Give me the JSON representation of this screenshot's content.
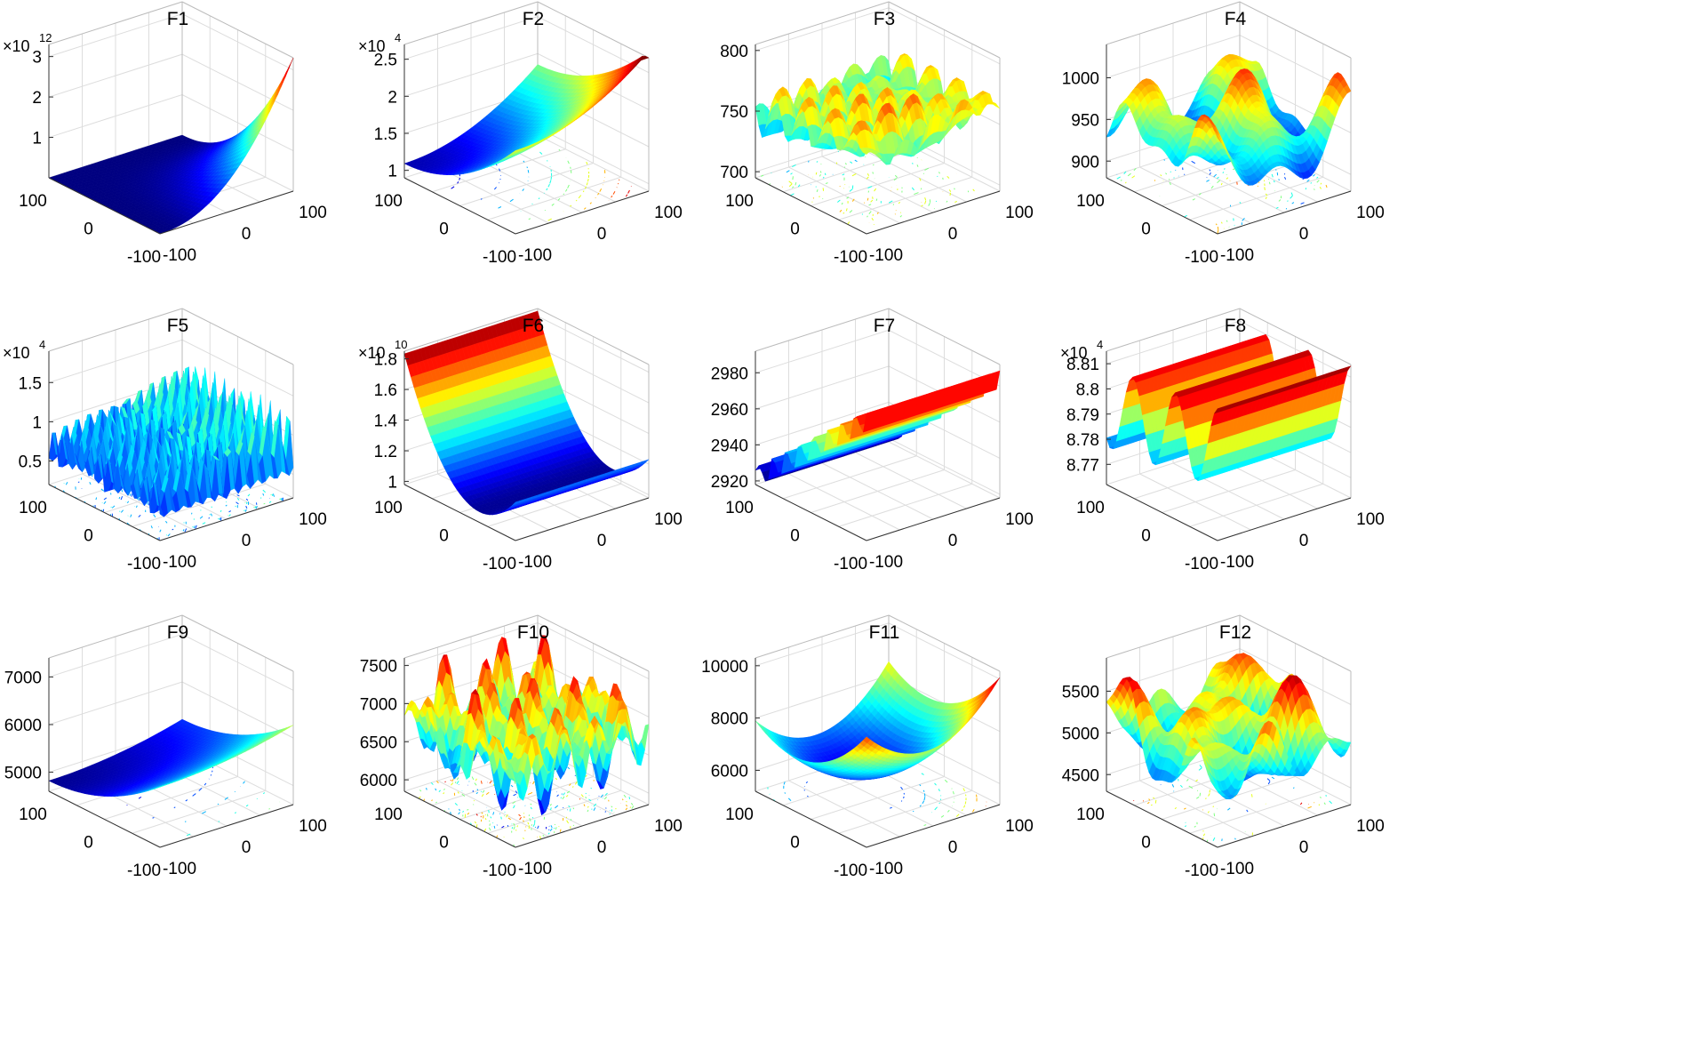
{
  "figure": {
    "description_labels": {
      "x_ticks": [
        "-100",
        "0",
        "100"
      ],
      "y_ticks": [
        "-100",
        "0",
        "100"
      ]
    }
  },
  "chart_data": [
    {
      "id": "F1",
      "type": "surface",
      "title": "F1",
      "exponent": "12",
      "zticks": [
        "1",
        "2",
        "3"
      ],
      "zlim": [
        0,
        3.3
      ],
      "surface": "power",
      "xlabel": "",
      "ylabel": "",
      "zlabel": "",
      "xlim": [
        -100,
        100
      ],
      "ylim": [
        -100,
        100
      ],
      "contour": false
    },
    {
      "id": "F2",
      "type": "surface",
      "title": "F2",
      "exponent": "4",
      "zticks": [
        "1",
        "1.5",
        "2",
        "2.5"
      ],
      "zlim": [
        0.9,
        2.7
      ],
      "surface": "bowl",
      "xlim": [
        -100,
        100
      ],
      "ylim": [
        -100,
        100
      ],
      "contour": true
    },
    {
      "id": "F3",
      "type": "surface",
      "title": "F3",
      "exponent": "",
      "zticks": [
        "700",
        "750",
        "800"
      ],
      "zlim": [
        695,
        805
      ],
      "surface": "rugged",
      "xlim": [
        -100,
        100
      ],
      "ylim": [
        -100,
        100
      ],
      "contour": true
    },
    {
      "id": "F4",
      "type": "surface",
      "title": "F4",
      "exponent": "",
      "zticks": [
        "900",
        "950",
        "1000"
      ],
      "zlim": [
        880,
        1040
      ],
      "surface": "bumpy",
      "xlim": [
        -100,
        100
      ],
      "ylim": [
        -100,
        100
      ],
      "contour": true
    },
    {
      "id": "F5",
      "type": "surface",
      "title": "F5",
      "exponent": "4",
      "zticks": [
        "0.5",
        "1",
        "1.5"
      ],
      "zlim": [
        0.2,
        1.9
      ],
      "surface": "spiky",
      "xlim": [
        -100,
        100
      ],
      "ylim": [
        -100,
        100
      ],
      "contour": true
    },
    {
      "id": "F6",
      "type": "surface",
      "title": "F6",
      "exponent": "10",
      "zticks": [
        "1",
        "1.2",
        "1.4",
        "1.6",
        "1.8"
      ],
      "zlim": [
        0.98,
        1.85
      ],
      "surface": "valley",
      "xlim": [
        -100,
        100
      ],
      "ylim": [
        -100,
        100
      ],
      "contour": true
    },
    {
      "id": "F7",
      "type": "surface",
      "title": "F7",
      "exponent": "",
      "zticks": [
        "2920",
        "2940",
        "2960",
        "2980"
      ],
      "zlim": [
        2918,
        2992
      ],
      "surface": "steps",
      "xlim": [
        -100,
        100
      ],
      "ylim": [
        -100,
        100
      ],
      "contour": true
    },
    {
      "id": "F8",
      "type": "surface",
      "title": "F8",
      "exponent": "4",
      "zticks": [
        "8.77",
        "8.78",
        "8.79",
        "8.8",
        "8.81"
      ],
      "zlim": [
        8.762,
        8.815
      ],
      "surface": "wave",
      "xlim": [
        -100,
        100
      ],
      "ylim": [
        -100,
        100
      ],
      "contour": true
    },
    {
      "id": "F9",
      "type": "surface",
      "title": "F9",
      "exponent": "",
      "zticks": [
        "5000",
        "6000",
        "7000"
      ],
      "zlim": [
        4600,
        7400
      ],
      "surface": "bowl2",
      "xlim": [
        -100,
        100
      ],
      "ylim": [
        -100,
        100
      ],
      "contour": true
    },
    {
      "id": "F10",
      "type": "surface",
      "title": "F10",
      "exponent": "",
      "zticks": [
        "6000",
        "6500",
        "7000",
        "7500"
      ],
      "zlim": [
        5850,
        7600
      ],
      "surface": "rugged2",
      "xlim": [
        -100,
        100
      ],
      "ylim": [
        -100,
        100
      ],
      "contour": true
    },
    {
      "id": "F11",
      "type": "surface",
      "title": "F11",
      "exponent": "",
      "zticks": [
        "6000",
        "8000",
        "10000"
      ],
      "zlim": [
        5200,
        10300
      ],
      "surface": "bowl3",
      "xlim": [
        -100,
        100
      ],
      "ylim": [
        -100,
        100
      ],
      "contour": true
    },
    {
      "id": "F12",
      "type": "surface",
      "title": "F12",
      "exponent": "",
      "zticks": [
        "4500",
        "5000",
        "5500"
      ],
      "zlim": [
        4300,
        5900
      ],
      "surface": "bumpy2",
      "xlim": [
        -100,
        100
      ],
      "ylim": [
        -100,
        100
      ],
      "contour": true
    }
  ]
}
